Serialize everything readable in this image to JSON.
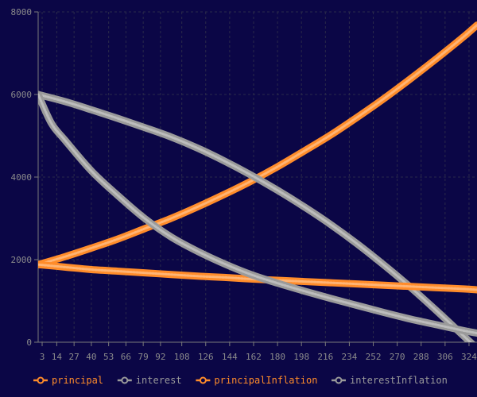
{
  "chart_data": {
    "type": "line",
    "title": "",
    "xlabel": "",
    "ylabel": "",
    "x_ticks": [
      3,
      14,
      27,
      40,
      53,
      66,
      79,
      92,
      108,
      126,
      144,
      162,
      180,
      198,
      216,
      234,
      252,
      270,
      288,
      306,
      324
    ],
    "y_ticks": [
      0,
      2000,
      4000,
      6000,
      8000
    ],
    "xlim": [
      0,
      330
    ],
    "ylim": [
      0,
      8000
    ],
    "grid": true,
    "legend_position": "bottom",
    "series": [
      {
        "name": "principal",
        "color": "#ff8c2a",
        "x": [
          0,
          20,
          40,
          60,
          80,
          100,
          120,
          140,
          160,
          180,
          200,
          220,
          240,
          260,
          280,
          300,
          320,
          330
        ],
        "y": [
          1880,
          2070,
          2280,
          2500,
          2750,
          3000,
          3280,
          3580,
          3900,
          4250,
          4630,
          5020,
          5450,
          5900,
          6380,
          6880,
          7400,
          7680
        ]
      },
      {
        "name": "interest",
        "color": "#9a9a9a",
        "x": [
          0,
          20,
          40,
          60,
          80,
          100,
          120,
          140,
          160,
          180,
          200,
          220,
          240,
          260,
          280,
          300,
          320,
          330
        ],
        "y": [
          6000,
          5830,
          5630,
          5420,
          5200,
          4970,
          4700,
          4390,
          4050,
          3680,
          3280,
          2850,
          2380,
          1870,
          1330,
          750,
          150,
          -150
        ]
      },
      {
        "name": "principalInflation",
        "color": "#ff8c2a",
        "x": [
          0,
          20,
          40,
          60,
          80,
          100,
          120,
          140,
          160,
          180,
          200,
          220,
          240,
          260,
          280,
          300,
          320,
          330
        ],
        "y": [
          1880,
          1820,
          1760,
          1720,
          1680,
          1640,
          1600,
          1570,
          1530,
          1500,
          1470,
          1440,
          1410,
          1380,
          1350,
          1320,
          1290,
          1270
        ]
      },
      {
        "name": "interestInflation",
        "color": "#9a9a9a",
        "x": [
          0,
          10,
          20,
          40,
          60,
          80,
          100,
          120,
          140,
          160,
          180,
          200,
          220,
          240,
          260,
          280,
          300,
          320,
          330
        ],
        "y": [
          6000,
          5300,
          4900,
          4150,
          3550,
          3000,
          2550,
          2200,
          1900,
          1640,
          1430,
          1240,
          1060,
          890,
          720,
          560,
          420,
          280,
          220
        ]
      }
    ]
  }
}
